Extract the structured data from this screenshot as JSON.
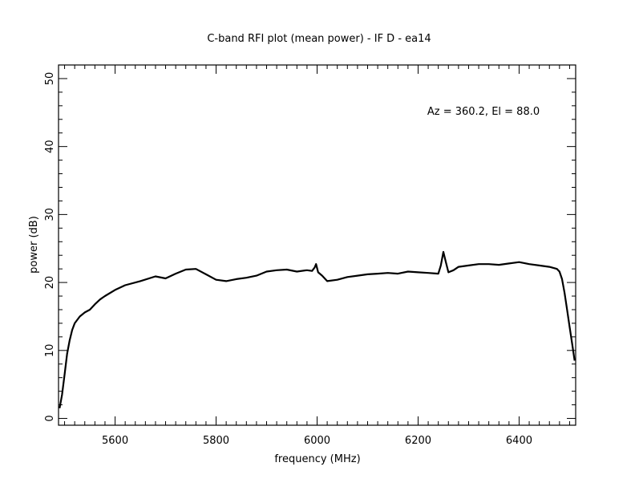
{
  "chart_data": {
    "type": "line",
    "title": "C-band RFI plot (mean power) - IF D - ea14",
    "xlabel": "frequency (MHz)",
    "ylabel": "power (dB)",
    "annotation": "Az = 360.2, El = 88.0",
    "xlim": [
      5488,
      6512
    ],
    "ylim": [
      -1,
      52
    ],
    "x_ticks": [
      5600,
      5800,
      6000,
      6200,
      6400
    ],
    "x_tick_labels": [
      "5600",
      "5800",
      "6000",
      "6200",
      "6400"
    ],
    "y_ticks": [
      0,
      10,
      20,
      30,
      40,
      50
    ],
    "y_tick_labels": [
      "0",
      "10",
      "20",
      "30",
      "40",
      "50"
    ],
    "grid": false,
    "line_color": "#000000",
    "series": [
      {
        "x": [
          5490,
          5495,
          5500,
          5505,
          5510,
          5515,
          5520,
          5530,
          5540,
          5550,
          5560,
          5570,
          5580,
          5600,
          5620,
          5650,
          5680,
          5700,
          5720,
          5740,
          5760,
          5780,
          5800,
          5820,
          5840,
          5860,
          5880,
          5900,
          5920,
          5940,
          5960,
          5980,
          5990,
          5995,
          5998,
          6002,
          6010,
          6020,
          6040,
          6060,
          6080,
          6100,
          6120,
          6140,
          6160,
          6180,
          6200,
          6220,
          6240,
          6245,
          6250,
          6255,
          6260,
          6270,
          6280,
          6300,
          6320,
          6340,
          6360,
          6380,
          6400,
          6420,
          6440,
          6460,
          6475,
          6480,
          6485,
          6490,
          6495,
          6500,
          6505,
          6510
        ],
        "y": [
          1.5,
          3.5,
          6.5,
          9.5,
          11.5,
          13.0,
          14.0,
          15.0,
          15.6,
          16.0,
          16.8,
          17.5,
          18.0,
          18.9,
          19.6,
          20.2,
          20.9,
          20.6,
          21.3,
          21.9,
          22.0,
          21.2,
          20.4,
          20.2,
          20.5,
          20.7,
          21.0,
          21.6,
          21.8,
          21.9,
          21.6,
          21.8,
          21.7,
          22.2,
          22.7,
          21.5,
          21.0,
          20.2,
          20.4,
          20.8,
          21.0,
          21.2,
          21.3,
          21.4,
          21.3,
          21.6,
          21.5,
          21.4,
          21.3,
          22.5,
          24.5,
          23.0,
          21.5,
          21.8,
          22.3,
          22.5,
          22.7,
          22.7,
          22.6,
          22.8,
          23.0,
          22.7,
          22.5,
          22.3,
          22.0,
          21.6,
          20.5,
          18.5,
          16.0,
          13.5,
          11.0,
          8.5
        ]
      }
    ]
  }
}
